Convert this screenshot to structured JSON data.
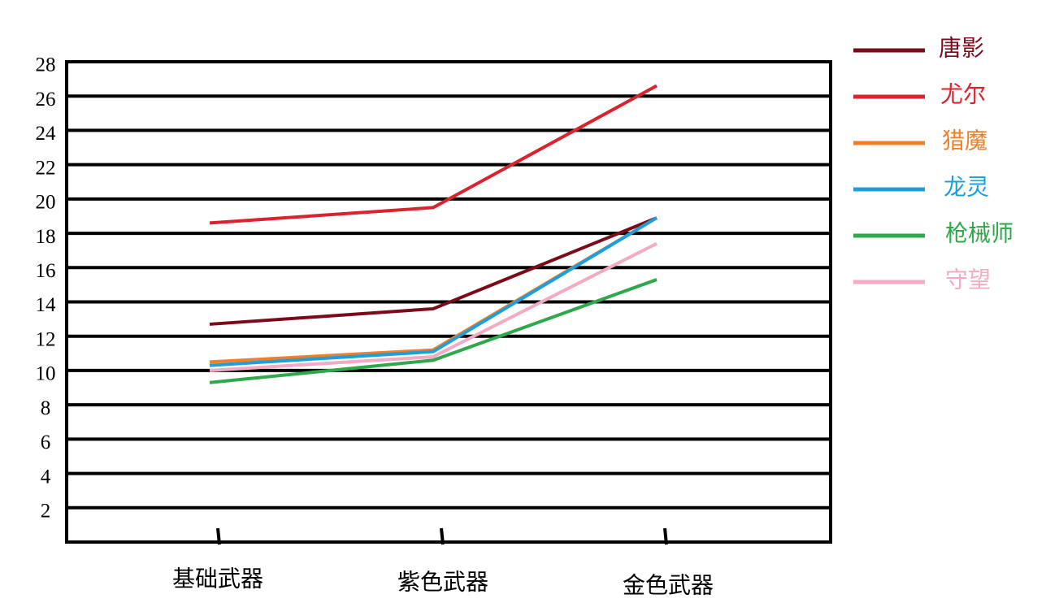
{
  "chart_data": {
    "type": "line",
    "categories": [
      "基础武器",
      "紫色武器",
      "金色武器"
    ],
    "series": [
      {
        "name": "唐影",
        "color": "#7b0a1a",
        "values": [
          12.7,
          13.6,
          18.9
        ]
      },
      {
        "name": "尤尔",
        "color": "#d9232e",
        "values": [
          18.6,
          19.5,
          26.6
        ]
      },
      {
        "name": "猎魔",
        "color": "#ef7f2a",
        "values": [
          10.5,
          11.2,
          18.9
        ]
      },
      {
        "name": "龙灵",
        "color": "#1ca0dc",
        "values": [
          10.3,
          11.1,
          18.9
        ]
      },
      {
        "name": "枪械师",
        "color": "#2ea84a",
        "values": [
          9.3,
          10.6,
          15.3
        ]
      },
      {
        "name": "守望",
        "color": "#f4aac4",
        "values": [
          10.0,
          10.8,
          17.4
        ]
      }
    ],
    "ylim": [
      0,
      28
    ],
    "yticks": [
      2,
      4,
      6,
      8,
      10,
      12,
      14,
      16,
      18,
      20,
      22,
      24,
      26,
      28
    ],
    "grid": true,
    "legend": "right"
  }
}
